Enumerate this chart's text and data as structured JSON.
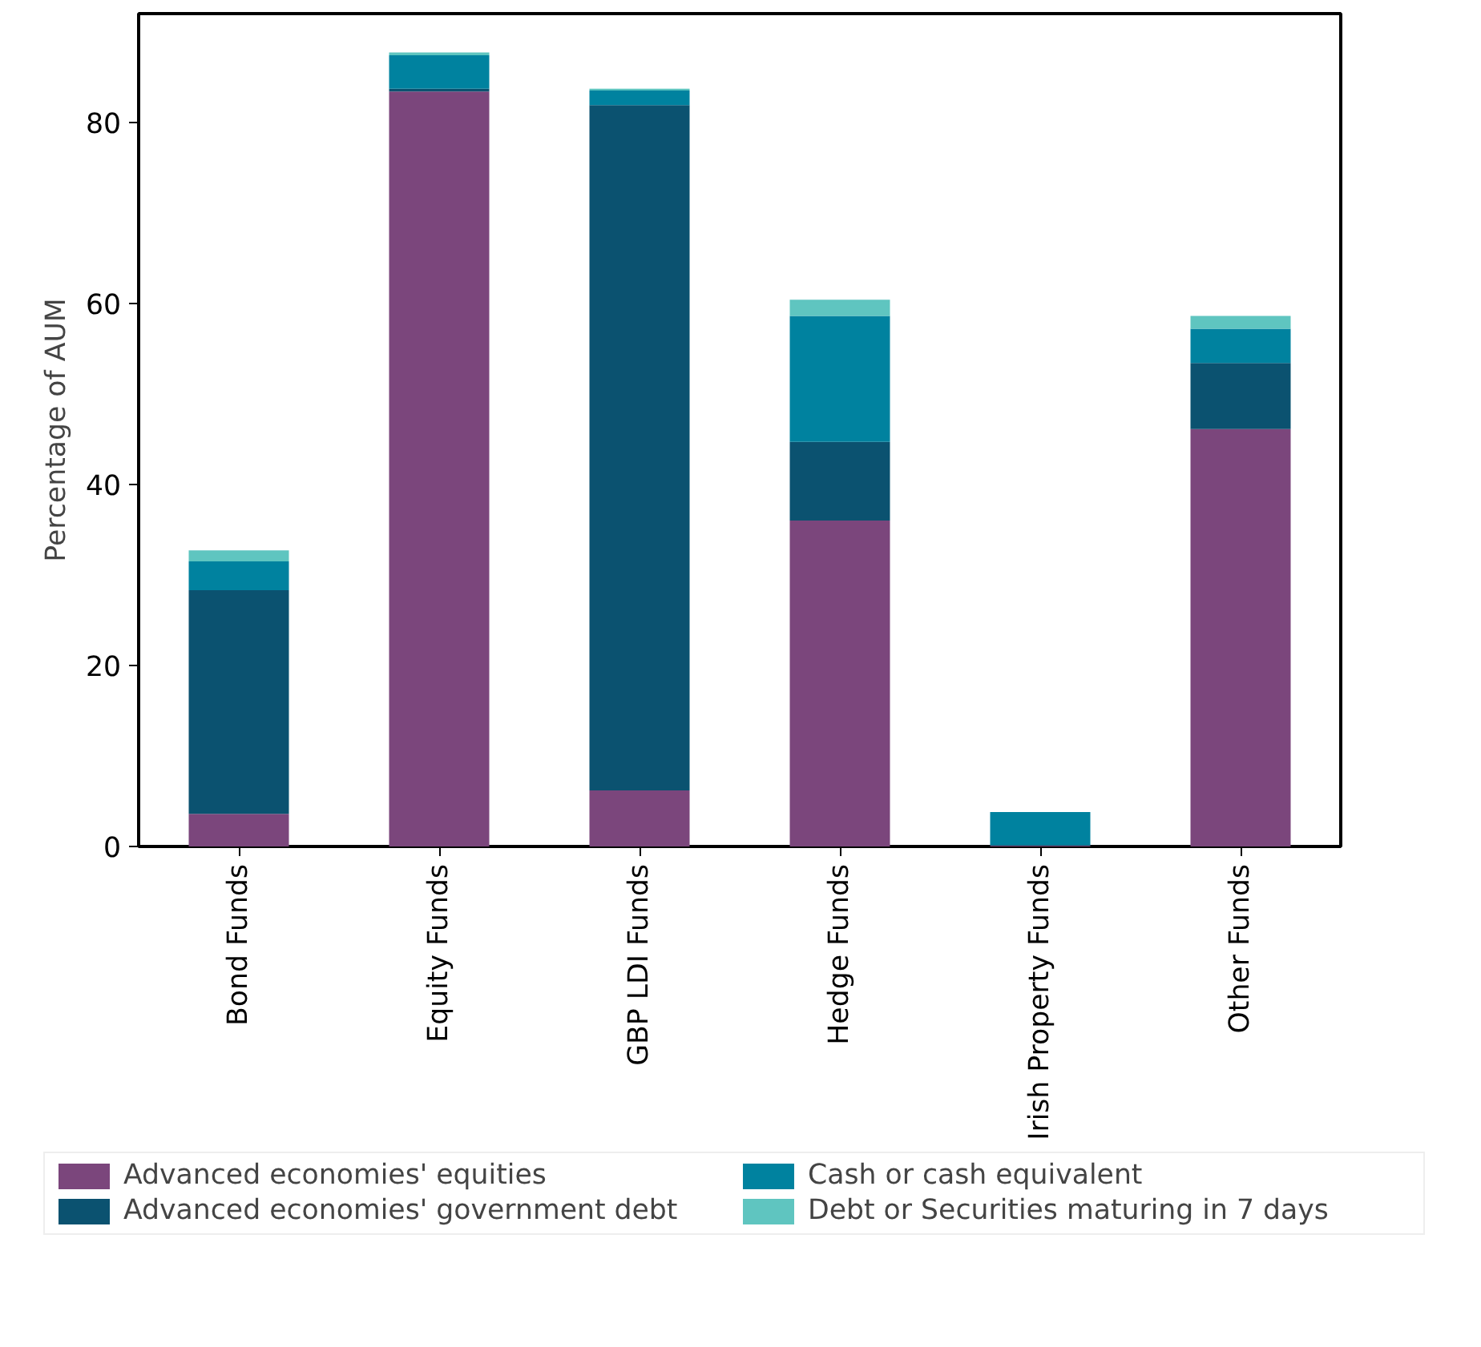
{
  "chart_data": {
    "type": "bar",
    "stacked": true,
    "ylabel": "Percentage of AUM",
    "categories": [
      "Bond Funds",
      "Equity Funds",
      "GBP LDI Funds",
      "Hedge Funds",
      "Irish Property Funds",
      "Other Funds"
    ],
    "series": [
      {
        "name": "Advanced economies' equities",
        "color": "#7b467c",
        "values": [
          3.6,
          83.4,
          6.2,
          36.0,
          0.1,
          46.1
        ]
      },
      {
        "name": "Advanced economies' government debt",
        "color": "#0b5270",
        "values": [
          24.7,
          0.3,
          75.7,
          8.7,
          0,
          7.3
        ]
      },
      {
        "name": "Cash or cash equivalent",
        "color": "#00829f",
        "values": [
          3.2,
          3.7,
          1.6,
          13.9,
          3.7,
          3.8
        ]
      },
      {
        "name": "Debt or Securities maturing in 7 days",
        "color": "#5fc5c0",
        "values": [
          1.2,
          0.3,
          0.2,
          1.8,
          0,
          1.4
        ]
      }
    ],
    "ylim": [
      0,
      92
    ],
    "yticks": [
      0,
      20,
      40,
      60,
      80
    ],
    "grid": false,
    "legend": "bottom"
  }
}
